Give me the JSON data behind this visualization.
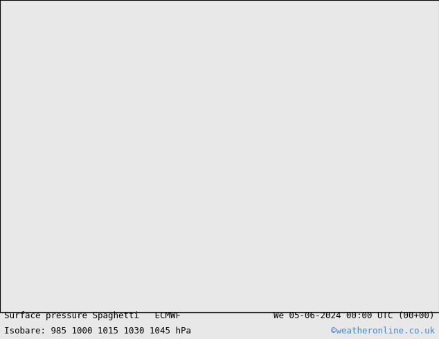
{
  "title_left": "Surface pressure Spaghetti   ECMWF",
  "title_right": "We 05-06-2024 00:00 UTC (00+00)",
  "subtitle": "Isobare: 985 1000 1015 1030 1045 hPa",
  "credit": "©weatheronline.co.uk",
  "background_color": "#e8e8e8",
  "map_background": "#e8e8e8",
  "land_color": "#c8f0c8",
  "coastline_color": "#808080",
  "text_color": "#000000",
  "credit_color": "#4488cc",
  "font_size_title": 9,
  "font_size_sub": 9,
  "figsize": [
    6.34,
    4.9
  ],
  "dpi": 100,
  "extent": [
    155,
    185,
    -52,
    -22
  ],
  "isobar_colors": [
    "#000000",
    "#ff0000",
    "#00aa00",
    "#0000ff",
    "#ff8800",
    "#ff00ff",
    "#00ffff",
    "#ffff00",
    "#888888"
  ],
  "spaghetti_colors": [
    "#000000",
    "#ff0000",
    "#00cc00",
    "#0000ff",
    "#ff8800",
    "#ff00ff",
    "#00cccc",
    "#ffff00",
    "#aaaaaa",
    "#ff6688",
    "#88ff88",
    "#8888ff"
  ]
}
